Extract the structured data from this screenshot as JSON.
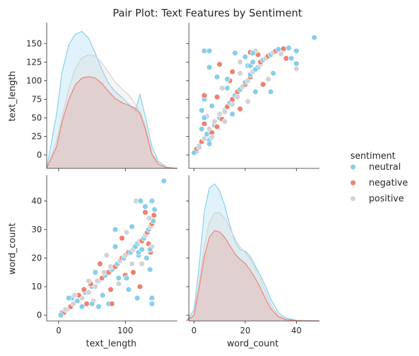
{
  "chart_data": {
    "type": "scatter",
    "title": "Pair Plot: Text Features by Sentiment",
    "variables": [
      "text_length",
      "word_count"
    ],
    "hue": "sentiment",
    "legend": {
      "title": "sentiment",
      "placement": "center-right",
      "entries": [
        {
          "name": "neutral",
          "color": "#87ceeb"
        },
        {
          "name": "negative",
          "color": "#f08070"
        },
        {
          "name": "positive",
          "color": "#d3d3d3"
        }
      ]
    },
    "axes": {
      "text_length": {
        "label": "text_length",
        "range": [
          -18,
          178
        ],
        "row_ticks": [
          0,
          25,
          50,
          75,
          100,
          125,
          150
        ],
        "col_ticks": [
          0,
          100
        ]
      },
      "word_count": {
        "label": "word_count",
        "range": [
          -2,
          49
        ],
        "row_ticks": [
          0,
          10,
          20,
          30,
          40
        ],
        "col_ticks": [
          0,
          20,
          40
        ]
      }
    },
    "diagonal_kde": {
      "text_length": {
        "x": [
          -18,
          -3,
          5,
          15,
          25,
          35,
          45,
          55,
          65,
          75,
          85,
          95,
          105,
          115,
          122,
          130,
          140,
          150,
          162,
          178
        ],
        "series": [
          {
            "name": "neutral",
            "y": [
              0,
              0.4,
              0.7,
              0.9,
              0.98,
              1.0,
              0.95,
              0.84,
              0.72,
              0.62,
              0.56,
              0.52,
              0.47,
              0.42,
              0.54,
              0.38,
              0.16,
              0.05,
              0.01,
              0
            ]
          },
          {
            "name": "positive",
            "y": [
              0,
              0.2,
              0.38,
              0.58,
              0.73,
              0.81,
              0.83,
              0.82,
              0.77,
              0.7,
              0.63,
              0.58,
              0.54,
              0.47,
              0.42,
              0.31,
              0.12,
              0.03,
              0.005,
              0
            ]
          },
          {
            "name": "negative",
            "y": [
              0,
              0.16,
              0.34,
              0.5,
              0.61,
              0.66,
              0.67,
              0.66,
              0.62,
              0.56,
              0.51,
              0.48,
              0.46,
              0.44,
              0.4,
              0.29,
              0.1,
              0.03,
              0.005,
              0
            ]
          }
        ]
      },
      "word_count": {
        "x": [
          -3,
          0,
          2,
          4,
          6,
          8,
          10,
          12,
          14,
          16,
          18,
          20,
          22,
          24,
          26,
          28,
          30,
          33,
          36,
          40,
          45,
          49
        ],
        "series": [
          {
            "name": "neutral",
            "y": [
              0,
              0.08,
              0.4,
              0.8,
              0.97,
              1.0,
              0.95,
              0.84,
              0.7,
              0.58,
              0.52,
              0.51,
              0.47,
              0.4,
              0.33,
              0.25,
              0.16,
              0.06,
              0.02,
              0.005,
              0.002,
              0
            ]
          },
          {
            "name": "positive",
            "y": [
              0,
              0.05,
              0.28,
              0.55,
              0.72,
              0.79,
              0.79,
              0.75,
              0.68,
              0.6,
              0.54,
              0.5,
              0.45,
              0.38,
              0.3,
              0.21,
              0.12,
              0.04,
              0.01,
              0.003,
              0,
              0
            ]
          },
          {
            "name": "negative",
            "y": [
              0,
              0.04,
              0.24,
              0.47,
              0.61,
              0.66,
              0.65,
              0.61,
              0.55,
              0.49,
              0.45,
              0.42,
              0.37,
              0.31,
              0.24,
              0.16,
              0.09,
              0.03,
              0.01,
              0.002,
              0,
              0
            ]
          }
        ]
      }
    },
    "scatter_points": [
      {
        "series": "neutral",
        "text_length": 5,
        "word_count": 1
      },
      {
        "series": "neutral",
        "text_length": 12,
        "word_count": 2
      },
      {
        "series": "negative",
        "text_length": 18,
        "word_count": 3
      },
      {
        "series": "positive",
        "text_length": 22,
        "word_count": 4
      },
      {
        "series": "neutral",
        "text_length": 28,
        "word_count": 5
      },
      {
        "series": "neutral",
        "text_length": 20,
        "word_count": 6
      },
      {
        "series": "positive",
        "text_length": 35,
        "word_count": 6
      },
      {
        "series": "negative",
        "text_length": 30,
        "word_count": 7
      },
      {
        "series": "neutral",
        "text_length": 40,
        "word_count": 8
      },
      {
        "series": "positive",
        "text_length": 45,
        "word_count": 8
      },
      {
        "series": "negative",
        "text_length": 38,
        "word_count": 9
      },
      {
        "series": "neutral",
        "text_length": 50,
        "word_count": 10
      },
      {
        "series": "positive",
        "text_length": 55,
        "word_count": 10
      },
      {
        "series": "negative",
        "text_length": 48,
        "word_count": 11
      },
      {
        "series": "neutral",
        "text_length": 60,
        "word_count": 12
      },
      {
        "series": "positive",
        "text_length": 58,
        "word_count": 12
      },
      {
        "series": "negative",
        "text_length": 65,
        "word_count": 13
      },
      {
        "series": "neutral",
        "text_length": 70,
        "word_count": 14
      },
      {
        "series": "positive",
        "text_length": 68,
        "word_count": 15
      },
      {
        "series": "negative",
        "text_length": 75,
        "word_count": 15
      },
      {
        "series": "neutral",
        "text_length": 80,
        "word_count": 16
      },
      {
        "series": "positive",
        "text_length": 78,
        "word_count": 17
      },
      {
        "series": "negative",
        "text_length": 85,
        "word_count": 17
      },
      {
        "series": "neutral",
        "text_length": 88,
        "word_count": 18
      },
      {
        "series": "positive",
        "text_length": 92,
        "word_count": 19
      },
      {
        "series": "negative",
        "text_length": 95,
        "word_count": 20
      },
      {
        "series": "neutral",
        "text_length": 98,
        "word_count": 20
      },
      {
        "series": "positive",
        "text_length": 100,
        "word_count": 21
      },
      {
        "series": "negative",
        "text_length": 105,
        "word_count": 22
      },
      {
        "series": "neutral",
        "text_length": 108,
        "word_count": 22
      },
      {
        "series": "positive",
        "text_length": 112,
        "word_count": 23
      },
      {
        "series": "negative",
        "text_length": 115,
        "word_count": 24
      },
      {
        "series": "neutral",
        "text_length": 118,
        "word_count": 25
      },
      {
        "series": "positive",
        "text_length": 122,
        "word_count": 26
      },
      {
        "series": "negative",
        "text_length": 125,
        "word_count": 26
      },
      {
        "series": "neutral",
        "text_length": 128,
        "word_count": 27
      },
      {
        "series": "positive",
        "text_length": 130,
        "word_count": 28
      },
      {
        "series": "negative",
        "text_length": 133,
        "word_count": 29
      },
      {
        "series": "neutral",
        "text_length": 135,
        "word_count": 30
      },
      {
        "series": "positive",
        "text_length": 138,
        "word_count": 31
      },
      {
        "series": "negative",
        "text_length": 140,
        "word_count": 32
      },
      {
        "series": "neutral",
        "text_length": 142,
        "word_count": 33
      },
      {
        "series": "positive",
        "text_length": 136,
        "word_count": 34
      },
      {
        "series": "negative",
        "text_length": 143,
        "word_count": 35
      },
      {
        "series": "neutral",
        "text_length": 144,
        "word_count": 37
      },
      {
        "series": "neutral",
        "text_length": 158,
        "word_count": 47
      },
      {
        "series": "positive",
        "text_length": 116,
        "word_count": 40
      },
      {
        "series": "neutral",
        "text_length": 60,
        "word_count": 3
      },
      {
        "series": "neutral",
        "text_length": 75,
        "word_count": 4
      },
      {
        "series": "negative",
        "text_length": 80,
        "word_count": 4
      },
      {
        "series": "neutral",
        "text_length": 105,
        "word_count": 9
      },
      {
        "series": "negative",
        "text_length": 122,
        "word_count": 10
      },
      {
        "series": "neutral",
        "text_length": 118,
        "word_count": 6
      },
      {
        "series": "neutral",
        "text_length": 140,
        "word_count": 4
      },
      {
        "series": "neutral",
        "text_length": 140,
        "word_count": 6
      },
      {
        "series": "neutral",
        "text_length": 15,
        "word_count": 6
      },
      {
        "series": "positive",
        "text_length": 24,
        "word_count": 7
      },
      {
        "series": "negative",
        "text_length": 130,
        "word_count": 36
      },
      {
        "series": "neutral",
        "text_length": 90,
        "word_count": 13
      },
      {
        "series": "negative",
        "text_length": 100,
        "word_count": 14
      },
      {
        "series": "positive",
        "text_length": 110,
        "word_count": 18
      },
      {
        "series": "neutral",
        "text_length": 120,
        "word_count": 21
      },
      {
        "series": "negative",
        "text_length": 135,
        "word_count": 25
      },
      {
        "series": "positive",
        "text_length": 45,
        "word_count": 12
      },
      {
        "series": "neutral",
        "text_length": 55,
        "word_count": 15
      },
      {
        "series": "negative",
        "text_length": 62,
        "word_count": 18
      },
      {
        "series": "positive",
        "text_length": 72,
        "word_count": 21
      },
      {
        "series": "neutral",
        "text_length": 85,
        "word_count": 24
      },
      {
        "series": "negative",
        "text_length": 95,
        "word_count": 27
      },
      {
        "series": "positive",
        "text_length": 102,
        "word_count": 29
      },
      {
        "series": "neutral",
        "text_length": 110,
        "word_count": 31
      },
      {
        "series": "neutral",
        "text_length": 35,
        "word_count": 3
      },
      {
        "series": "negative",
        "text_length": 42,
        "word_count": 4
      },
      {
        "series": "positive",
        "text_length": 52,
        "word_count": 5
      },
      {
        "series": "neutral",
        "text_length": 66,
        "word_count": 7
      },
      {
        "series": "negative",
        "text_length": 78,
        "word_count": 9
      },
      {
        "series": "positive",
        "text_length": 90,
        "word_count": 11
      },
      {
        "series": "neutral",
        "text_length": 102,
        "word_count": 13
      },
      {
        "series": "negative",
        "text_length": 112,
        "word_count": 15
      },
      {
        "series": "positive",
        "text_length": 125,
        "word_count": 18
      },
      {
        "series": "neutral",
        "text_length": 132,
        "word_count": 20
      },
      {
        "series": "negative",
        "text_length": 138,
        "word_count": 22
      },
      {
        "series": "positive",
        "text_length": 140,
        "word_count": 24
      },
      {
        "series": "negative",
        "text_length": 8,
        "word_count": 1
      },
      {
        "series": "positive",
        "text_length": 10,
        "word_count": 2
      },
      {
        "series": "neutral",
        "text_length": 3,
        "word_count": 0
      },
      {
        "series": "neutral",
        "text_length": 137,
        "word_count": 16
      },
      {
        "series": "neutral",
        "text_length": 137,
        "word_count": 23
      },
      {
        "series": "neutral",
        "text_length": 123,
        "word_count": 40
      },
      {
        "series": "neutral",
        "text_length": 120,
        "word_count": 22
      },
      {
        "series": "neutral",
        "text_length": 125,
        "word_count": 23
      },
      {
        "series": "neutral",
        "text_length": 115,
        "word_count": 24
      },
      {
        "series": "neutral",
        "text_length": 50,
        "word_count": 4
      },
      {
        "series": "neutral",
        "text_length": 85,
        "word_count": 30
      },
      {
        "series": "neutral",
        "text_length": 130,
        "word_count": 38
      },
      {
        "series": "neutral",
        "text_length": 140,
        "word_count": 40
      }
    ]
  }
}
